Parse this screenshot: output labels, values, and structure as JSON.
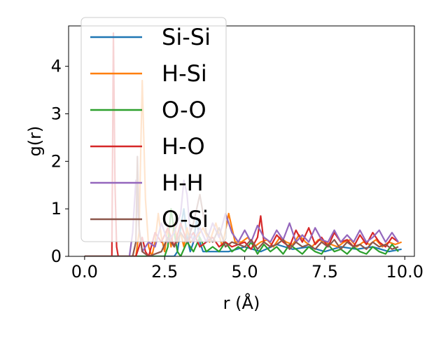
{
  "chart_data": {
    "type": "line",
    "title": "",
    "xlabel": "r (Å)",
    "ylabel": "g(r)",
    "xlim": [
      -0.5,
      10.3
    ],
    "ylim": [
      0,
      4.85
    ],
    "xticks": [
      0.0,
      2.5,
      5.0,
      7.5,
      10.0
    ],
    "xtick_labels": [
      "0.0",
      "2.5",
      "5.0",
      "7.5",
      "10.0"
    ],
    "yticks": [
      0,
      1,
      2,
      3,
      4
    ],
    "ytick_labels": [
      "0",
      "1",
      "2",
      "3",
      "4"
    ],
    "grid": false,
    "legend_position": "top-left",
    "series": [
      {
        "name": "Si-Si",
        "color": "#1f77b4",
        "x": [
          0.0,
          2.8,
          2.9,
          3.0,
          3.1,
          3.2,
          3.3,
          3.4,
          3.5,
          3.6,
          3.7,
          4.5,
          5.0,
          5.5,
          6.0,
          6.5,
          7.0,
          7.5,
          8.0,
          8.5,
          9.0,
          9.5,
          9.9
        ],
        "y": [
          0.0,
          0.0,
          0.1,
          0.6,
          1.0,
          0.4,
          0.1,
          0.3,
          0.8,
          0.3,
          0.1,
          0.1,
          0.2,
          0.1,
          0.25,
          0.15,
          0.2,
          0.1,
          0.2,
          0.15,
          0.2,
          0.1,
          0.15
        ]
      },
      {
        "name": "H-Si",
        "color": "#ff7f0e",
        "x": [
          0.0,
          1.6,
          1.7,
          1.8,
          1.9,
          2.0,
          2.1,
          2.2,
          2.3,
          2.4,
          2.5,
          2.6,
          2.7,
          2.8,
          2.9,
          3.0,
          3.1,
          3.2,
          3.3,
          3.5,
          3.7,
          3.9,
          4.1,
          4.3,
          4.5,
          4.7,
          4.9,
          5.1,
          5.3,
          5.5,
          5.7,
          5.9,
          6.1,
          6.3,
          6.5,
          6.7,
          6.9,
          7.1,
          7.3,
          7.5,
          7.7,
          7.9,
          8.1,
          8.3,
          8.5,
          8.7,
          8.9,
          9.1,
          9.3,
          9.5,
          9.7,
          9.9
        ],
        "y": [
          0.0,
          0.0,
          0.5,
          3.7,
          1.2,
          0.2,
          0.0,
          0.3,
          0.9,
          0.4,
          0.1,
          0.6,
          0.2,
          0.7,
          0.3,
          0.5,
          0.2,
          0.6,
          0.3,
          0.4,
          0.6,
          0.3,
          0.7,
          0.2,
          0.9,
          0.3,
          0.3,
          0.4,
          0.2,
          0.3,
          0.35,
          0.2,
          0.4,
          0.3,
          0.25,
          0.45,
          0.3,
          0.2,
          0.35,
          0.3,
          0.25,
          0.2,
          0.3,
          0.35,
          0.2,
          0.3,
          0.25,
          0.35,
          0.2,
          0.3,
          0.25,
          0.3
        ]
      },
      {
        "name": "O-O",
        "color": "#2ca02c",
        "x": [
          0.0,
          2.5,
          2.6,
          2.7,
          2.8,
          2.9,
          3.0,
          3.2,
          3.4,
          3.6,
          3.8,
          4.0,
          4.2,
          4.4,
          4.6,
          4.8,
          5.0,
          5.2,
          5.4,
          5.6,
          5.8,
          6.0,
          6.2,
          6.4,
          6.6,
          6.8,
          7.0,
          7.2,
          7.4,
          7.6,
          7.8,
          8.0,
          8.2,
          8.4,
          8.6,
          8.8,
          9.0,
          9.2,
          9.4,
          9.6,
          9.8
        ],
        "y": [
          0.0,
          0.0,
          0.2,
          1.0,
          0.5,
          0.1,
          0.0,
          0.3,
          0.1,
          0.4,
          0.1,
          0.2,
          0.1,
          0.3,
          0.1,
          0.2,
          0.1,
          0.3,
          0.05,
          0.25,
          0.1,
          0.2,
          0.05,
          0.25,
          0.15,
          0.05,
          0.2,
          0.1,
          0.05,
          0.25,
          0.1,
          0.15,
          0.05,
          0.2,
          0.1,
          0.05,
          0.2,
          0.1,
          0.05,
          0.25,
          0.1
        ]
      },
      {
        "name": "H-O",
        "color": "#d62728",
        "x": [
          0.0,
          0.85,
          0.9,
          0.95,
          1.0,
          1.05,
          1.1,
          1.6,
          1.7,
          1.8,
          1.9,
          2.0,
          2.2,
          2.4,
          2.6,
          2.8,
          3.0,
          3.2,
          3.4,
          3.6,
          3.8,
          4.0,
          4.2,
          4.4,
          4.6,
          4.8,
          5.0,
          5.2,
          5.4,
          5.5,
          5.6,
          5.8,
          6.0,
          6.2,
          6.4,
          6.6,
          6.8,
          7.0,
          7.2,
          7.4,
          7.6,
          7.8,
          8.0,
          8.2,
          8.4,
          8.6,
          8.8,
          9.0,
          9.2,
          9.4,
          9.6,
          9.8
        ],
        "y": [
          0.0,
          0.0,
          4.7,
          1.5,
          0.2,
          0.0,
          0.0,
          0.0,
          0.2,
          0.4,
          0.1,
          0.0,
          0.5,
          0.3,
          0.6,
          0.2,
          0.7,
          0.3,
          0.5,
          0.2,
          0.3,
          0.4,
          0.2,
          0.3,
          0.2,
          0.25,
          0.3,
          0.15,
          0.4,
          0.85,
          0.3,
          0.2,
          0.45,
          0.3,
          0.2,
          0.55,
          0.3,
          0.6,
          0.25,
          0.4,
          0.2,
          0.5,
          0.3,
          0.35,
          0.2,
          0.45,
          0.25,
          0.5,
          0.3,
          0.2,
          0.4,
          0.3
        ]
      },
      {
        "name": "H-H",
        "color": "#9467bd",
        "x": [
          0.0,
          1.4,
          1.5,
          1.6,
          1.7,
          1.8,
          2.0,
          2.2,
          2.4,
          2.6,
          2.8,
          3.0,
          3.1,
          3.2,
          3.3,
          3.4,
          3.6,
          3.8,
          4.0,
          4.2,
          4.4,
          4.6,
          4.8,
          5.0,
          5.2,
          5.4,
          5.6,
          5.8,
          6.0,
          6.2,
          6.4,
          6.6,
          6.8,
          7.0,
          7.2,
          7.4,
          7.6,
          7.8,
          8.0,
          8.2,
          8.4,
          8.6,
          8.8,
          9.0,
          9.2,
          9.4,
          9.6,
          9.8
        ],
        "y": [
          0.0,
          0.0,
          0.5,
          1.6,
          0.6,
          0.1,
          0.3,
          0.2,
          0.7,
          0.3,
          0.5,
          0.9,
          1.6,
          1.3,
          0.5,
          0.3,
          0.6,
          0.3,
          0.7,
          0.4,
          0.9,
          0.5,
          0.3,
          0.55,
          0.3,
          0.65,
          0.4,
          0.3,
          0.55,
          0.35,
          0.7,
          0.3,
          0.45,
          0.3,
          0.6,
          0.35,
          0.3,
          0.55,
          0.3,
          0.45,
          0.3,
          0.55,
          0.3,
          0.4,
          0.55,
          0.3,
          0.5,
          0.3
        ]
      },
      {
        "name": "O-Si",
        "color": "#8c564b",
        "x": [
          0.0,
          1.5,
          1.6,
          1.65,
          1.7,
          1.8,
          2.0,
          2.4,
          2.6,
          2.8,
          3.0,
          3.2,
          3.4,
          3.6,
          3.8,
          4.0,
          4.2,
          4.4,
          4.6,
          4.8,
          5.0,
          5.2,
          5.4,
          5.6,
          5.8,
          6.0,
          6.2,
          6.4,
          6.6,
          6.8,
          7.0,
          7.2,
          7.4,
          7.6,
          7.8,
          8.0,
          8.2,
          8.4,
          8.6,
          8.8,
          9.0,
          9.2,
          9.4,
          9.6,
          9.8
        ],
        "y": [
          0.0,
          0.0,
          0.3,
          2.1,
          0.6,
          0.1,
          0.0,
          0.1,
          0.4,
          0.2,
          0.5,
          0.3,
          0.7,
          1.3,
          0.5,
          0.3,
          0.6,
          0.2,
          0.3,
          0.25,
          0.2,
          0.35,
          0.15,
          0.3,
          0.2,
          0.25,
          0.35,
          0.15,
          0.3,
          0.2,
          0.25,
          0.15,
          0.3,
          0.2,
          0.35,
          0.15,
          0.3,
          0.2,
          0.25,
          0.15,
          0.3,
          0.2,
          0.25,
          0.15,
          0.2
        ]
      }
    ]
  }
}
